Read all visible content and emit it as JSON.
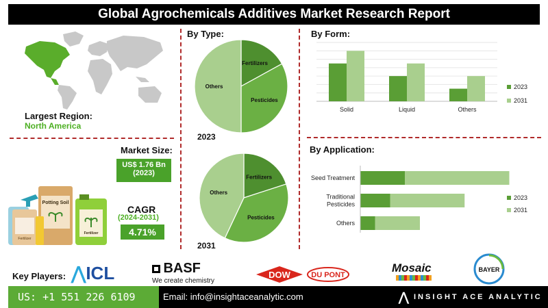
{
  "title": "Global Agrochemicals Additives Market Research Report",
  "region": {
    "label": "Largest Region:",
    "value": "North America"
  },
  "market_size": {
    "label": "Market Size:",
    "value": "US$ 1.76 Bn",
    "year": "(2023)"
  },
  "cagr": {
    "label": "CAGR",
    "period": "(2024-2031)",
    "value": "4.71%"
  },
  "products": {
    "bag_label": "Fertilizer",
    "box_label": "Potting Soil",
    "can_label": "Fertilizer"
  },
  "by_type": {
    "title": "By Type:",
    "year1": "2023",
    "year2": "2031"
  },
  "by_form": {
    "title": "By Form:"
  },
  "by_application": {
    "title": "By Application:"
  },
  "key_players": {
    "label": "Key Players:",
    "icl": "ICL",
    "basf": "BASF",
    "basf_tagline": "We create chemistry",
    "dow": "DOW",
    "dupont": "DU PONT",
    "mosaic": "Mosaic",
    "bayer": "BAYER"
  },
  "footer": {
    "phone": "US: +1 551 226 6109",
    "email": "Email: info@insightaceanalytic.com",
    "brand": "INSIGHT ACE ANALYTIC"
  },
  "colors": {
    "dark_green": "#4e8f2f",
    "mid_green": "#6bb044",
    "light_green": "#a9cf8e",
    "accent_red": "#b02a2a"
  },
  "chart_data": [
    {
      "type": "pie",
      "title": "2023",
      "slices": [
        {
          "label": "Fertilizers",
          "value": 17
        },
        {
          "label": "Pesticides",
          "value": 33
        },
        {
          "label": "Others",
          "value": 50
        }
      ]
    },
    {
      "type": "pie",
      "title": "2031",
      "slices": [
        {
          "label": "Fertilizers",
          "value": 20
        },
        {
          "label": "Pesticides",
          "value": 37
        },
        {
          "label": "Others",
          "value": 43
        }
      ]
    },
    {
      "type": "bar",
      "title": "By Form:",
      "categories": [
        "Solid",
        "Liquid",
        "Others"
      ],
      "series": [
        {
          "name": "2023",
          "values": [
            4.5,
            3.0,
            1.5
          ]
        },
        {
          "name": "2031",
          "values": [
            6.0,
            4.5,
            3.0
          ]
        }
      ],
      "ylim": [
        0,
        7
      ],
      "legend": "right"
    },
    {
      "type": "bar",
      "orientation": "horizontal",
      "title": "By Application:",
      "categories": [
        "Seed Treatment",
        "Traditional Pesticides",
        "Others"
      ],
      "series": [
        {
          "name": "2023",
          "values": [
            3.0,
            2.0,
            1.0
          ]
        },
        {
          "name": "2031",
          "values": [
            7.0,
            5.0,
            3.0
          ]
        }
      ],
      "xlim": [
        0,
        8
      ],
      "legend": "right"
    }
  ]
}
